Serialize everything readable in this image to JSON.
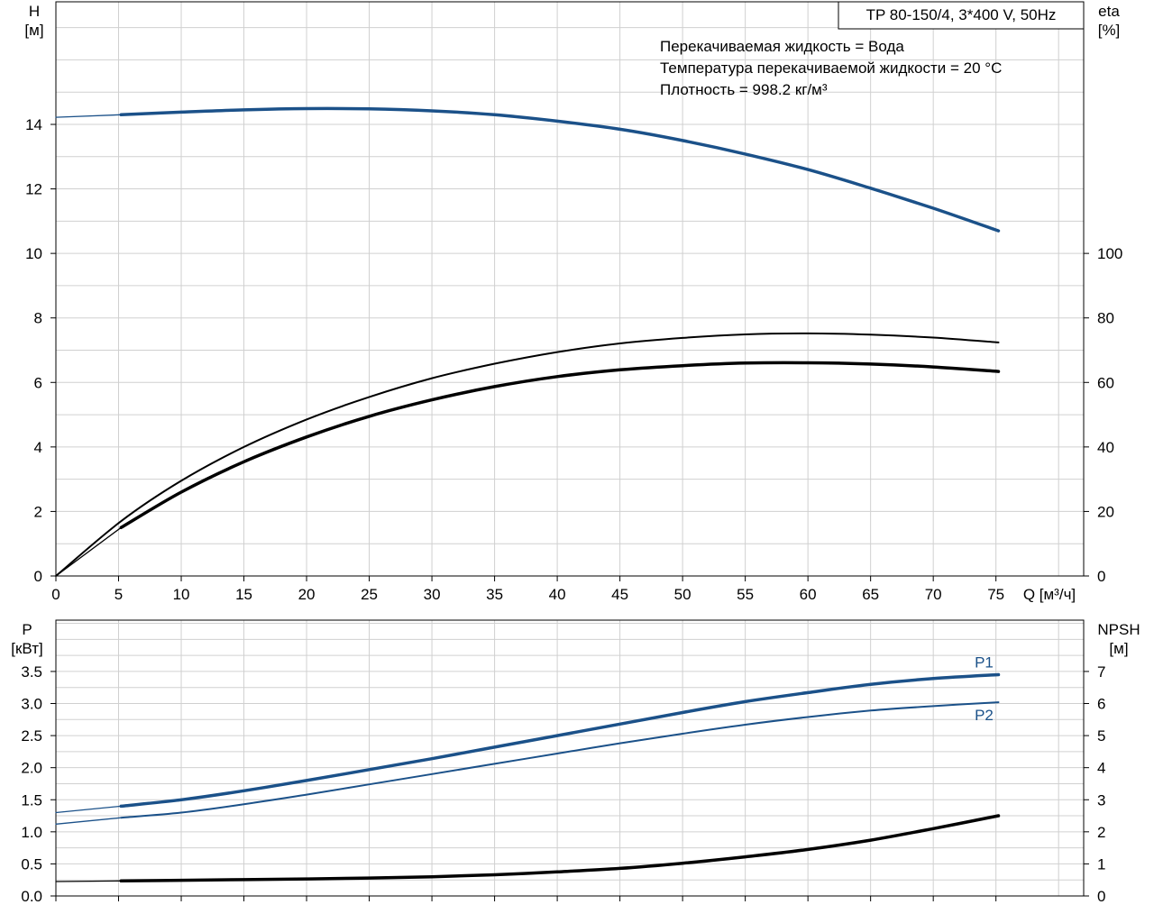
{
  "model_box": "TP 80-150/4, 3*400 V, 50Hz",
  "info_lines": [
    "Перекачиваемая жидкость = Вода",
    "Температура перекачиваемой жидкости = 20 °C",
    "Плотность = 998.2 кг/м³"
  ],
  "colors": {
    "blue": "#1b5189",
    "black": "#000000",
    "grid": "#d0d0d0"
  },
  "chart_data": [
    {
      "type": "line",
      "x_label": "Q [м³/ч]",
      "x_ticks": [
        0,
        5,
        10,
        15,
        20,
        25,
        30,
        35,
        40,
        45,
        50,
        55,
        60,
        65,
        70,
        75
      ],
      "xlim": [
        0,
        82
      ],
      "left_axis": {
        "label_line1": "H",
        "label_line2": "[м]",
        "ticks": [
          0,
          2,
          4,
          6,
          8,
          10,
          12,
          14
        ],
        "lim": [
          0,
          17.8
        ]
      },
      "right_axis": {
        "label_line1": "eta",
        "label_line2": "[%]",
        "ticks": [
          0,
          20,
          40,
          60,
          80,
          100
        ],
        "lim": [
          0,
          178
        ]
      },
      "grid": true,
      "series": [
        {
          "axis": "left",
          "color": "blue",
          "width": 3.5,
          "points": [
            [
              5.2,
              14.3
            ],
            [
              10,
              14.38
            ],
            [
              15,
              14.45
            ],
            [
              20,
              14.49
            ],
            [
              25,
              14.48
            ],
            [
              30,
              14.42
            ],
            [
              35,
              14.3
            ],
            [
              40,
              14.1
            ],
            [
              45,
              13.85
            ],
            [
              50,
              13.5
            ],
            [
              55,
              13.08
            ],
            [
              60,
              12.6
            ],
            [
              65,
              12.02
            ],
            [
              70,
              11.4
            ],
            [
              75.2,
              10.7
            ]
          ],
          "extension": [
            [
              0,
              14.22
            ],
            [
              5.2,
              14.3
            ]
          ]
        },
        {
          "axis": "right",
          "color": "black",
          "width": 2,
          "points": [
            [
              0,
              0
            ],
            [
              5.2,
              17
            ],
            [
              10,
              29.5
            ],
            [
              15,
              40
            ],
            [
              20,
              48.5
            ],
            [
              25,
              55.5
            ],
            [
              30,
              61.3
            ],
            [
              35,
              65.8
            ],
            [
              40,
              69.4
            ],
            [
              45,
              72.1
            ],
            [
              50,
              73.8
            ],
            [
              55,
              74.9
            ],
            [
              60,
              75.2
            ],
            [
              65,
              74.8
            ],
            [
              70,
              73.9
            ],
            [
              75.2,
              72.4
            ]
          ]
        },
        {
          "axis": "right",
          "color": "black",
          "width": 3.5,
          "points": [
            [
              5.2,
              15
            ],
            [
              10,
              26
            ],
            [
              15,
              35.4
            ],
            [
              20,
              43.1
            ],
            [
              25,
              49.5
            ],
            [
              30,
              54.6
            ],
            [
              35,
              58.7
            ],
            [
              40,
              61.8
            ],
            [
              45,
              63.9
            ],
            [
              50,
              65.2
            ],
            [
              55,
              66
            ],
            [
              60,
              66.1
            ],
            [
              65,
              65.7
            ],
            [
              70,
              64.8
            ],
            [
              75.2,
              63.4
            ]
          ],
          "extension": [
            [
              0,
              0
            ],
            [
              5.2,
              15
            ]
          ]
        }
      ]
    },
    {
      "type": "line",
      "x_ticks": [
        0,
        5,
        10,
        15,
        20,
        25,
        30,
        35,
        40,
        45,
        50,
        55,
        60,
        65,
        70,
        75
      ],
      "xlim": [
        0,
        82
      ],
      "left_axis": {
        "label_line1": "P",
        "label_line2": "[кВт]",
        "ticks": [
          0.0,
          0.5,
          1.0,
          1.5,
          2.0,
          2.5,
          3.0,
          3.5
        ],
        "tick_labels": [
          "0.0",
          "0.5",
          "1.0",
          "1.5",
          "2.0",
          "2.5",
          "3.0",
          "3.5"
        ],
        "lim": [
          0,
          4.3
        ]
      },
      "right_axis": {
        "label_line1": "NPSH",
        "label_line2": "[м]",
        "ticks": [
          0,
          1,
          2,
          3,
          4,
          5,
          6,
          7
        ],
        "lim": [
          0,
          8.6
        ]
      },
      "grid": true,
      "series": [
        {
          "name": "P1",
          "axis": "left",
          "color": "blue",
          "width": 3.5,
          "points": [
            [
              5.2,
              1.4
            ],
            [
              10,
              1.5
            ],
            [
              15,
              1.64
            ],
            [
              20,
              1.8
            ],
            [
              25,
              1.97
            ],
            [
              30,
              2.14
            ],
            [
              35,
              2.32
            ],
            [
              40,
              2.5
            ],
            [
              45,
              2.68
            ],
            [
              50,
              2.86
            ],
            [
              55,
              3.03
            ],
            [
              60,
              3.17
            ],
            [
              65,
              3.3
            ],
            [
              70,
              3.39
            ],
            [
              75.2,
              3.45
            ]
          ],
          "extension": [
            [
              0,
              1.3
            ],
            [
              5.2,
              1.4
            ]
          ]
        },
        {
          "name": "P2",
          "axis": "left",
          "color": "blue",
          "width": 2,
          "points": [
            [
              5.2,
              1.22
            ],
            [
              10,
              1.3
            ],
            [
              15,
              1.43
            ],
            [
              20,
              1.58
            ],
            [
              25,
              1.74
            ],
            [
              30,
              1.9
            ],
            [
              35,
              2.06
            ],
            [
              40,
              2.22
            ],
            [
              45,
              2.38
            ],
            [
              50,
              2.53
            ],
            [
              55,
              2.67
            ],
            [
              60,
              2.79
            ],
            [
              65,
              2.89
            ],
            [
              70,
              2.96
            ],
            [
              75.2,
              3.02
            ]
          ],
          "extension": [
            [
              0,
              1.12
            ],
            [
              5.2,
              1.22
            ]
          ]
        },
        {
          "axis": "right",
          "color": "black",
          "width": 3.5,
          "points": [
            [
              5.2,
              0.47
            ],
            [
              10,
              0.49
            ],
            [
              15,
              0.51
            ],
            [
              20,
              0.53
            ],
            [
              25,
              0.56
            ],
            [
              30,
              0.6
            ],
            [
              35,
              0.66
            ],
            [
              40,
              0.75
            ],
            [
              45,
              0.86
            ],
            [
              50,
              1.02
            ],
            [
              55,
              1.22
            ],
            [
              60,
              1.45
            ],
            [
              65,
              1.74
            ],
            [
              70,
              2.1
            ],
            [
              75.2,
              2.5
            ]
          ],
          "extension": [
            [
              0,
              0.45
            ],
            [
              5.2,
              0.47
            ]
          ]
        }
      ]
    }
  ]
}
